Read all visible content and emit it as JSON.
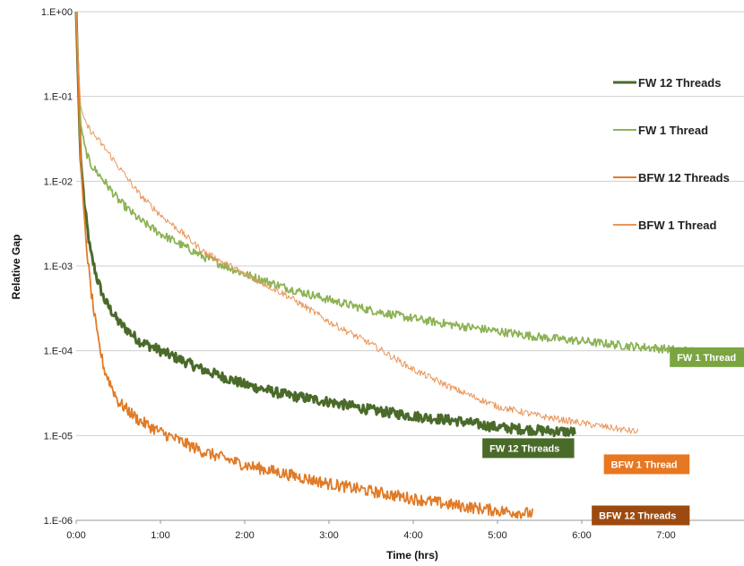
{
  "chart_data": {
    "type": "line",
    "title": "",
    "xlabel": "Time (hrs)",
    "ylabel": "Relative Gap",
    "yscale": "log",
    "xlim": [
      "0:00",
      "8:00"
    ],
    "ylim": [
      1e-06,
      1
    ],
    "x_ticks": [
      "0:00",
      "1:00",
      "2:00",
      "3:00",
      "4:00",
      "5:00",
      "6:00",
      "7:00"
    ],
    "y_ticks": [
      "1.E+00",
      "1.E-01",
      "1.E-02",
      "1.E-03",
      "1.E-04",
      "1.E-05",
      "1.E-06"
    ],
    "grid": true,
    "legend": "right",
    "series": [
      {
        "name": "FW 12 Threads",
        "color": "#4a6a2a",
        "width": 3,
        "noise": 0.12,
        "end_label": "FW 12 Threads",
        "x": [
          "0:00",
          "0:03",
          "0:06",
          "0:10",
          "0:15",
          "0:20",
          "0:30",
          "0:45",
          "1:00",
          "1:30",
          "2:00",
          "2:30",
          "3:00",
          "3:30",
          "4:00",
          "4:30",
          "5:00",
          "5:30",
          "5:55"
        ],
        "values": [
          1.0,
          0.02,
          0.005,
          0.0015,
          0.0007,
          0.0004,
          0.00022,
          0.00013,
          0.0001,
          6e-05,
          4e-05,
          3e-05,
          2.5e-05,
          2e-05,
          1.7e-05,
          1.5e-05,
          1.25e-05,
          1.15e-05,
          1.1e-05
        ]
      },
      {
        "name": "FW 1 Thread",
        "color": "#8db356",
        "width": 1.8,
        "noise": 0.1,
        "end_label": "FW 1 Thread",
        "x": [
          "0:00",
          "0:03",
          "0:06",
          "0:10",
          "0:20",
          "0:30",
          "0:45",
          "1:00",
          "1:30",
          "2:00",
          "2:30",
          "3:00",
          "3:30",
          "4:00",
          "4:30",
          "5:00",
          "5:30",
          "6:00",
          "6:30",
          "7:00",
          "7:30",
          "8:00"
        ],
        "values": [
          1.0,
          0.05,
          0.025,
          0.016,
          0.01,
          0.006,
          0.0035,
          0.0024,
          0.0013,
          0.0008,
          0.00055,
          0.0004,
          0.0003,
          0.00024,
          0.0002,
          0.00017,
          0.000145,
          0.00013,
          0.000115,
          0.000105,
          9.5e-05,
          8e-05
        ]
      },
      {
        "name": "BFW 12 Threads",
        "color": "#e07b28",
        "width": 1.8,
        "noise": 0.14,
        "end_label": "BFW 12 Threads",
        "x": [
          "0:00",
          "0:03",
          "0:06",
          "0:10",
          "0:15",
          "0:20",
          "0:30",
          "0:45",
          "1:00",
          "1:30",
          "2:00",
          "2:30",
          "3:00",
          "3:30",
          "4:00",
          "4:30",
          "5:00",
          "5:25"
        ],
        "values": [
          1.0,
          0.02,
          0.003,
          0.0006,
          0.00015,
          6e-05,
          2.5e-05,
          1.5e-05,
          1.1e-05,
          6.5e-06,
          4.5e-06,
          3.5e-06,
          2.7e-06,
          2.2e-06,
          1.8e-06,
          1.5e-06,
          1.3e-06,
          1.2e-06
        ]
      },
      {
        "name": "BFW 1 Thread",
        "color": "#e9955a",
        "width": 1,
        "noise": 0.08,
        "end_label": "BFW 1 Thread",
        "x": [
          "0:00",
          "0:03",
          "0:06",
          "0:10",
          "0:20",
          "0:30",
          "0:45",
          "1:00",
          "1:15",
          "1:30",
          "2:00",
          "2:30",
          "3:00",
          "3:30",
          "4:00",
          "4:30",
          "5:00",
          "5:30",
          "6:00",
          "6:40"
        ],
        "values": [
          1.0,
          0.08,
          0.05,
          0.04,
          0.025,
          0.015,
          0.007,
          0.004,
          0.0025,
          0.0015,
          0.0008,
          0.00045,
          0.00022,
          0.00012,
          6e-05,
          3.5e-05,
          2.2e-05,
          1.7e-05,
          1.4e-05,
          1.1e-05
        ]
      }
    ],
    "end_tags": [
      {
        "series": "FW 1 Thread",
        "text": "FW 1 Thread",
        "bg": "#7aa541"
      },
      {
        "series": "FW 12 Threads",
        "text": "FW 12 Threads",
        "bg": "#4a6a2a"
      },
      {
        "series": "BFW 1 Thread",
        "text": "BFW 1 Thread",
        "bg": "#e87722"
      },
      {
        "series": "BFW 12 Threads",
        "text": "BFW 12 Threads",
        "bg": "#9c4a10"
      }
    ]
  }
}
